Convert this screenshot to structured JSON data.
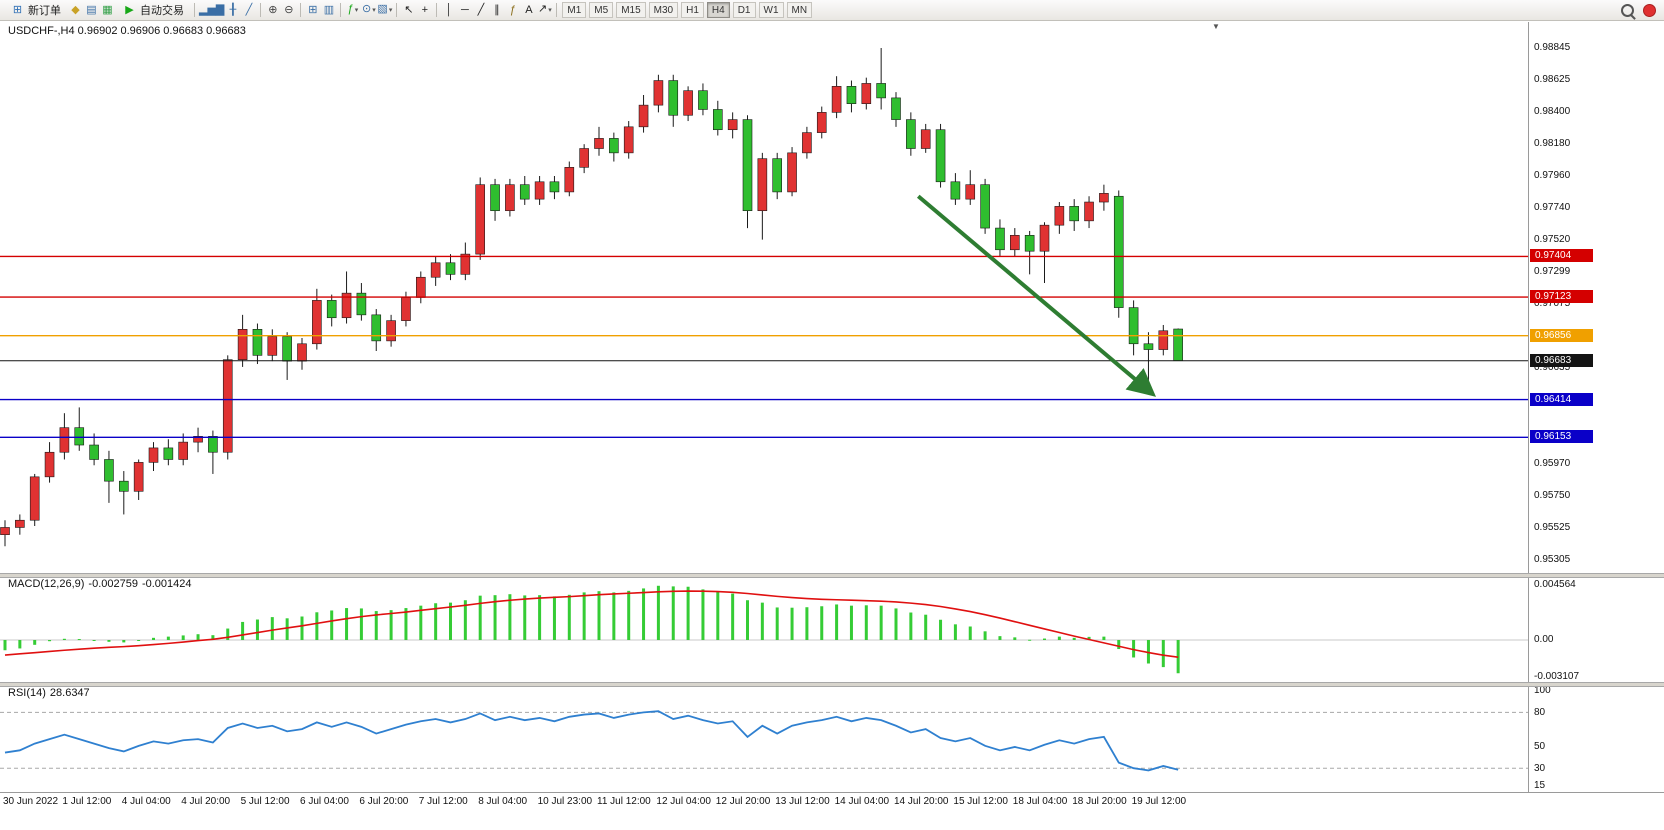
{
  "toolbar": {
    "active_timeframe": "H4",
    "caret_glyph": "▾",
    "items": [
      {
        "kind": "labelbtn",
        "name": "new-order-button",
        "icon_name": "new-order-icon",
        "glyph": "⊞",
        "glyph_color": "#2f6fb5",
        "label": "新订单"
      },
      {
        "kind": "icon",
        "name": "market-watch-icon",
        "glyph": "◆",
        "glyph_color": "#c9a227"
      },
      {
        "kind": "icon",
        "name": "navigator-icon",
        "glyph": "▤",
        "glyph_color": "#3a6ea5"
      },
      {
        "kind": "icon",
        "name": "terminal-icon",
        "glyph": "▦",
        "glyph_color": "#2f9e44"
      },
      {
        "kind": "labelbtn",
        "name": "autotrade-button",
        "icon_name": "autotrade-play-icon",
        "glyph": "▶",
        "glyph_color": "#18a818",
        "label": "自动交易"
      },
      {
        "kind": "sep"
      },
      {
        "kind": "icon",
        "name": "bar-chart-icon",
        "glyph": "▂▅▇",
        "glyph_color": "#3a6ea5"
      },
      {
        "kind": "icon",
        "name": "candlestick-chart-icon",
        "glyph": "╂",
        "glyph_color": "#3a6ea5"
      },
      {
        "kind": "icon",
        "name": "line-chart-icon",
        "glyph": "╱",
        "glyph_color": "#3a6ea5"
      },
      {
        "kind": "sep"
      },
      {
        "kind": "icon",
        "name": "zoom-in-icon",
        "glyph": "⊕",
        "glyph_color": "#444444"
      },
      {
        "kind": "icon",
        "name": "zoom-out-icon",
        "glyph": "⊖",
        "glyph_color": "#444444"
      },
      {
        "kind": "sep"
      },
      {
        "kind": "icon",
        "name": "tile-windows-icon",
        "glyph": "⊞",
        "glyph_color": "#3a6ea5"
      },
      {
        "kind": "icon",
        "name": "arrange-windows-icon",
        "glyph": "▥",
        "glyph_color": "#3a6ea5"
      },
      {
        "kind": "sep"
      },
      {
        "kind": "dropdown",
        "name": "indicators-button",
        "icon_name": "indicators-icon",
        "glyph": "ƒ",
        "glyph_color": "#18a818"
      },
      {
        "kind": "dropdown",
        "name": "periods-button",
        "icon_name": "periods-clock-icon",
        "glyph": "⊙",
        "glyph_color": "#3a6ea5"
      },
      {
        "kind": "dropdown",
        "name": "templates-button",
        "icon_name": "templates-icon",
        "glyph": "▧",
        "glyph_color": "#3a6ea5"
      },
      {
        "kind": "sep"
      },
      {
        "kind": "icon",
        "name": "cursor-icon",
        "glyph": "↖",
        "glyph_color": "#222222"
      },
      {
        "kind": "icon",
        "name": "crosshair-icon",
        "glyph": "+",
        "glyph_color": "#222222"
      },
      {
        "kind": "sep"
      },
      {
        "kind": "icon",
        "name": "vertical-line-tool-icon",
        "glyph": "│",
        "glyph_color": "#222222"
      },
      {
        "kind": "icon",
        "name": "horizontal-line-tool-icon",
        "glyph": "─",
        "glyph_color": "#222222"
      },
      {
        "kind": "icon",
        "name": "trendline-tool-icon",
        "glyph": "╱",
        "glyph_color": "#222222"
      },
      {
        "kind": "icon",
        "name": "channel-tool-icon",
        "glyph": "∥",
        "glyph_color": "#222222"
      },
      {
        "kind": "icon",
        "name": "fibonacci-tool-icon",
        "glyph": "ƒ",
        "glyph_color": "#8a6d1a"
      },
      {
        "kind": "icon",
        "name": "text-tool-icon",
        "glyph": "A",
        "glyph_color": "#222222"
      },
      {
        "kind": "dropdown",
        "name": "arrows-tool-button",
        "icon_name": "arrows-tool-icon",
        "glyph": "↗",
        "glyph_color": "#222222"
      },
      {
        "kind": "sep"
      },
      {
        "kind": "tf",
        "name": "timeframe-m1-button",
        "label": "M1"
      },
      {
        "kind": "tf",
        "name": "timeframe-m5-button",
        "label": "M5"
      },
      {
        "kind": "tf",
        "name": "timeframe-m15-button",
        "label": "M15"
      },
      {
        "kind": "tf",
        "name": "timeframe-m30-button",
        "label": "M30"
      },
      {
        "kind": "tf",
        "name": "timeframe-h1-button",
        "label": "H1"
      },
      {
        "kind": "tf",
        "name": "timeframe-h4-button",
        "label": "H4"
      },
      {
        "kind": "tf",
        "name": "timeframe-d1-button",
        "label": "D1"
      },
      {
        "kind": "tf",
        "name": "timeframe-w1-button",
        "label": "W1"
      },
      {
        "kind": "tf",
        "name": "timeframe-mn-button",
        "label": "MN"
      },
      {
        "kind": "spacer"
      },
      {
        "kind": "css",
        "name": "search-icon",
        "css": "magnifier"
      },
      {
        "kind": "css",
        "name": "notification-badge",
        "css": "reddot"
      }
    ]
  },
  "chart_header": {
    "title": "USDCHF-,H4 0.96902 0.96906 0.96683 0.96683",
    "shift_marker_glyph": "▼"
  },
  "indicators": {
    "macd": {
      "name": "MACD(12,26,9)",
      "value1": "-0.002759",
      "value2": "-0.001424"
    },
    "rsi": {
      "name": "RSI(14)",
      "value": "28.6347"
    }
  },
  "chart_data": [
    {
      "type": "candlestick",
      "symbol": "USDCHF-",
      "timeframe": "H4",
      "ohlc_current": {
        "open": 0.96902,
        "high": 0.96906,
        "low": 0.96683,
        "close": 0.96683
      },
      "ylim": [
        0.95305,
        0.98845
      ],
      "up_color": "#e03232",
      "down_color": "#2fbe2f",
      "y_axis_labels": [
        "0.98845",
        "0.98625",
        "0.98400",
        "0.98180",
        "0.97960",
        "0.97740",
        "0.97520",
        "0.97299",
        "0.97075",
        "0.96635",
        "0.95970",
        "0.95750",
        "0.95525",
        "0.95305"
      ],
      "x_labels": [
        "30 Jun 2022",
        "1 Jul 12:00",
        "4 Jul 04:00",
        "4 Jul 20:00",
        "5 Jul 12:00",
        "6 Jul 04:00",
        "6 Jul 20:00",
        "7 Jul 12:00",
        "8 Jul 04:00",
        "10 Jul 23:00",
        "11 Jul 12:00",
        "12 Jul 04:00",
        "12 Jul 20:00",
        "13 Jul 12:00",
        "14 Jul 04:00",
        "14 Jul 20:00",
        "15 Jul 12:00",
        "18 Jul 04:00",
        "18 Jul 20:00",
        "19 Jul 12:00"
      ],
      "x_label_every_n_bars": 4,
      "bars": [
        [
          0.9548,
          0.9558,
          0.954,
          0.9553
        ],
        [
          0.9553,
          0.9562,
          0.9548,
          0.9558
        ],
        [
          0.9558,
          0.959,
          0.9554,
          0.9588
        ],
        [
          0.9588,
          0.9612,
          0.9584,
          0.9605
        ],
        [
          0.9605,
          0.9632,
          0.96,
          0.9622
        ],
        [
          0.9622,
          0.9636,
          0.9606,
          0.961
        ],
        [
          0.961,
          0.9618,
          0.9596,
          0.96
        ],
        [
          0.96,
          0.9606,
          0.957,
          0.9585
        ],
        [
          0.9585,
          0.9592,
          0.9562,
          0.9578
        ],
        [
          0.9578,
          0.96,
          0.9572,
          0.9598
        ],
        [
          0.9598,
          0.9612,
          0.9592,
          0.9608
        ],
        [
          0.9608,
          0.9614,
          0.9596,
          0.96
        ],
        [
          0.96,
          0.9618,
          0.9596,
          0.9612
        ],
        [
          0.9612,
          0.9622,
          0.9605,
          0.9616
        ],
        [
          0.9616,
          0.962,
          0.959,
          0.9605
        ],
        [
          0.9605,
          0.9672,
          0.96,
          0.9669
        ],
        [
          0.9669,
          0.97,
          0.9664,
          0.969
        ],
        [
          0.969,
          0.9694,
          0.9666,
          0.9672
        ],
        [
          0.9672,
          0.969,
          0.9668,
          0.9685
        ],
        [
          0.9685,
          0.9688,
          0.9655,
          0.9668
        ],
        [
          0.9668,
          0.9684,
          0.9662,
          0.968
        ],
        [
          0.968,
          0.9718,
          0.9676,
          0.971
        ],
        [
          0.971,
          0.9714,
          0.9692,
          0.9698
        ],
        [
          0.9698,
          0.973,
          0.9694,
          0.9715
        ],
        [
          0.9715,
          0.9722,
          0.9696,
          0.97
        ],
        [
          0.97,
          0.9704,
          0.9675,
          0.9682
        ],
        [
          0.9682,
          0.97,
          0.9678,
          0.9696
        ],
        [
          0.9696,
          0.9716,
          0.9692,
          0.9712
        ],
        [
          0.9712,
          0.973,
          0.9708,
          0.9726
        ],
        [
          0.9726,
          0.974,
          0.972,
          0.9736
        ],
        [
          0.9736,
          0.9742,
          0.9724,
          0.9728
        ],
        [
          0.9728,
          0.975,
          0.9724,
          0.9742
        ],
        [
          0.9742,
          0.9795,
          0.9738,
          0.979
        ],
        [
          0.979,
          0.9794,
          0.9765,
          0.9772
        ],
        [
          0.9772,
          0.9794,
          0.9768,
          0.979
        ],
        [
          0.979,
          0.9796,
          0.9776,
          0.978
        ],
        [
          0.978,
          0.9796,
          0.9776,
          0.9792
        ],
        [
          0.9792,
          0.9796,
          0.978,
          0.9785
        ],
        [
          0.9785,
          0.9806,
          0.9782,
          0.9802
        ],
        [
          0.9802,
          0.9818,
          0.9798,
          0.9815
        ],
        [
          0.9815,
          0.983,
          0.981,
          0.9822
        ],
        [
          0.9822,
          0.9826,
          0.9806,
          0.9812
        ],
        [
          0.9812,
          0.9834,
          0.9808,
          0.983
        ],
        [
          0.983,
          0.9852,
          0.9826,
          0.9845
        ],
        [
          0.9845,
          0.9866,
          0.984,
          0.9862
        ],
        [
          0.9862,
          0.9866,
          0.983,
          0.9838
        ],
        [
          0.9838,
          0.9858,
          0.9834,
          0.9855
        ],
        [
          0.9855,
          0.986,
          0.9838,
          0.9842
        ],
        [
          0.9842,
          0.9848,
          0.9824,
          0.9828
        ],
        [
          0.9828,
          0.984,
          0.9822,
          0.9835
        ],
        [
          0.9835,
          0.9838,
          0.976,
          0.9772
        ],
        [
          0.9772,
          0.9812,
          0.9752,
          0.9808
        ],
        [
          0.9808,
          0.9812,
          0.978,
          0.9785
        ],
        [
          0.9785,
          0.9816,
          0.9782,
          0.9812
        ],
        [
          0.9812,
          0.983,
          0.9808,
          0.9826
        ],
        [
          0.9826,
          0.9844,
          0.9822,
          0.984
        ],
        [
          0.984,
          0.9865,
          0.9836,
          0.9858
        ],
        [
          0.9858,
          0.9862,
          0.984,
          0.9846
        ],
        [
          0.9846,
          0.9864,
          0.9842,
          0.986
        ],
        [
          0.986,
          0.98845,
          0.9842,
          0.985
        ],
        [
          0.985,
          0.9854,
          0.983,
          0.9835
        ],
        [
          0.9835,
          0.984,
          0.981,
          0.9815
        ],
        [
          0.9815,
          0.9832,
          0.9812,
          0.9828
        ],
        [
          0.9828,
          0.9832,
          0.9788,
          0.9792
        ],
        [
          0.9792,
          0.9798,
          0.9776,
          0.978
        ],
        [
          0.978,
          0.98,
          0.9776,
          0.979
        ],
        [
          0.979,
          0.9794,
          0.9756,
          0.976
        ],
        [
          0.976,
          0.9766,
          0.974,
          0.9745
        ],
        [
          0.9745,
          0.976,
          0.974,
          0.9755
        ],
        [
          0.9755,
          0.9758,
          0.9728,
          0.9744
        ],
        [
          0.9744,
          0.9764,
          0.9722,
          0.9762
        ],
        [
          0.9762,
          0.9778,
          0.9756,
          0.9775
        ],
        [
          0.9775,
          0.978,
          0.9758,
          0.9765
        ],
        [
          0.9765,
          0.9782,
          0.976,
          0.9778
        ],
        [
          0.9778,
          0.979,
          0.9772,
          0.9784
        ],
        [
          0.9782,
          0.9786,
          0.9698,
          0.9705
        ],
        [
          0.9705,
          0.971,
          0.9672,
          0.968
        ],
        [
          0.968,
          0.9688,
          0.9652,
          0.9676
        ],
        [
          0.9676,
          0.9693,
          0.9672,
          0.9689
        ],
        [
          0.96902,
          0.96906,
          0.96683,
          0.96683
        ]
      ],
      "price_lines": [
        {
          "price": 0.97404,
          "label": "0.97404",
          "color": "#d40000",
          "kind": "resistance"
        },
        {
          "price": 0.97123,
          "label": "0.97123",
          "color": "#d40000",
          "kind": "resistance"
        },
        {
          "price": 0.96856,
          "label": "0.96856",
          "color": "#f0a000",
          "kind": "level"
        },
        {
          "price": 0.96683,
          "label": "0.96683",
          "color": "#141414",
          "kind": "current-price"
        },
        {
          "price": 0.96414,
          "label": "0.96414",
          "color": "#0a00c8",
          "kind": "support"
        },
        {
          "price": 0.96153,
          "label": "0.96153",
          "color": "#0a00c8",
          "kind": "support"
        }
      ],
      "annotations": [
        {
          "type": "arrow",
          "from": {
            "bar": 61.5,
            "price": 0.9782
          },
          "to": {
            "bar": 77.2,
            "price": 0.9646
          },
          "color": "#2e7d32"
        }
      ]
    },
    {
      "type": "bar",
      "name": "MACD(12,26,9)",
      "panel": "macd",
      "histogram_color": "#35cc35",
      "signal_color": "#e01010",
      "y_axis_labels": [
        "0.004564",
        "0.00",
        "-0.003107"
      ],
      "current_values": [
        -0.002759,
        -0.001424
      ],
      "histogram": [
        -0.00085,
        -0.0007,
        -0.0004,
        -0.0001,
        0.0001,
        8e-05,
        -5e-05,
        -0.00015,
        -0.0002,
        0.0,
        0.00018,
        0.00028,
        0.00038,
        0.00048,
        0.0004,
        0.00095,
        0.0015,
        0.0017,
        0.0019,
        0.0018,
        0.00195,
        0.0023,
        0.00245,
        0.00265,
        0.00262,
        0.0024,
        0.00248,
        0.00265,
        0.00285,
        0.00305,
        0.0031,
        0.0033,
        0.00368,
        0.00372,
        0.0038,
        0.0037,
        0.00372,
        0.00362,
        0.00375,
        0.00395,
        0.00405,
        0.00395,
        0.00408,
        0.00428,
        0.0045,
        0.00445,
        0.00442,
        0.0042,
        0.004,
        0.00385,
        0.0033,
        0.0031,
        0.0027,
        0.00268,
        0.00272,
        0.0028,
        0.00295,
        0.00285,
        0.00288,
        0.00285,
        0.00262,
        0.00228,
        0.0021,
        0.00168,
        0.0013,
        0.00112,
        0.00072,
        0.00032,
        0.00022,
        2e-05,
        0.00012,
        0.00028,
        0.00018,
        0.00026,
        0.00028,
        -0.00075,
        -0.00145,
        -0.00195,
        -0.00225,
        -0.002759
      ],
      "signal": [
        -0.00125,
        -0.00115,
        -0.00105,
        -0.00095,
        -0.00085,
        -0.00076,
        -0.00068,
        -0.00061,
        -0.00055,
        -0.00047,
        -0.00038,
        -0.00028,
        -0.00017,
        -5e-05,
        6e-05,
        0.00022,
        0.00042,
        0.00062,
        0.00082,
        0.001,
        0.00118,
        0.00138,
        0.00158,
        0.00177,
        0.00194,
        0.00208,
        0.0022,
        0.00232,
        0.00246,
        0.0026,
        0.00274,
        0.00288,
        0.00304,
        0.00318,
        0.0033,
        0.0034,
        0.00348,
        0.00354,
        0.0036,
        0.00368,
        0.00376,
        0.00382,
        0.00388,
        0.00394,
        0.004,
        0.00404,
        0.00406,
        0.00405,
        0.00402,
        0.00396,
        0.00386,
        0.00374,
        0.00362,
        0.00352,
        0.00344,
        0.00338,
        0.00334,
        0.0033,
        0.00326,
        0.00322,
        0.00316,
        0.00306,
        0.00294,
        0.00278,
        0.00258,
        0.00236,
        0.0021,
        0.00182,
        0.00152,
        0.00122,
        0.00092,
        0.00062,
        0.00032,
        4e-05,
        -0.00024,
        -0.00052,
        -0.0008,
        -0.00104,
        -0.00126,
        -0.001424
      ]
    },
    {
      "type": "line",
      "name": "RSI(14)",
      "panel": "rsi",
      "line_color": "#2f80d0",
      "ylim": [
        15,
        100
      ],
      "levels": [
        80,
        30
      ],
      "y_axis_labels": [
        "100",
        "80",
        "50",
        "30",
        "15"
      ],
      "current_value": 28.6347,
      "values": [
        44,
        46,
        52,
        56,
        60,
        56,
        52,
        48,
        45,
        50,
        54,
        52,
        55,
        56,
        53,
        66,
        70,
        66,
        68,
        63,
        65,
        71,
        67,
        71,
        67,
        61,
        65,
        69,
        72,
        74,
        71,
        74,
        79,
        73,
        76,
        73,
        75,
        72,
        76,
        78,
        79,
        75,
        78,
        80,
        81,
        74,
        77,
        73,
        70,
        72,
        58,
        68,
        61,
        68,
        71,
        73,
        76,
        72,
        75,
        73,
        68,
        62,
        65,
        57,
        54,
        57,
        50,
        46,
        49,
        46,
        51,
        55,
        52,
        56,
        58,
        35,
        30,
        28,
        32,
        28.6347
      ]
    }
  ]
}
